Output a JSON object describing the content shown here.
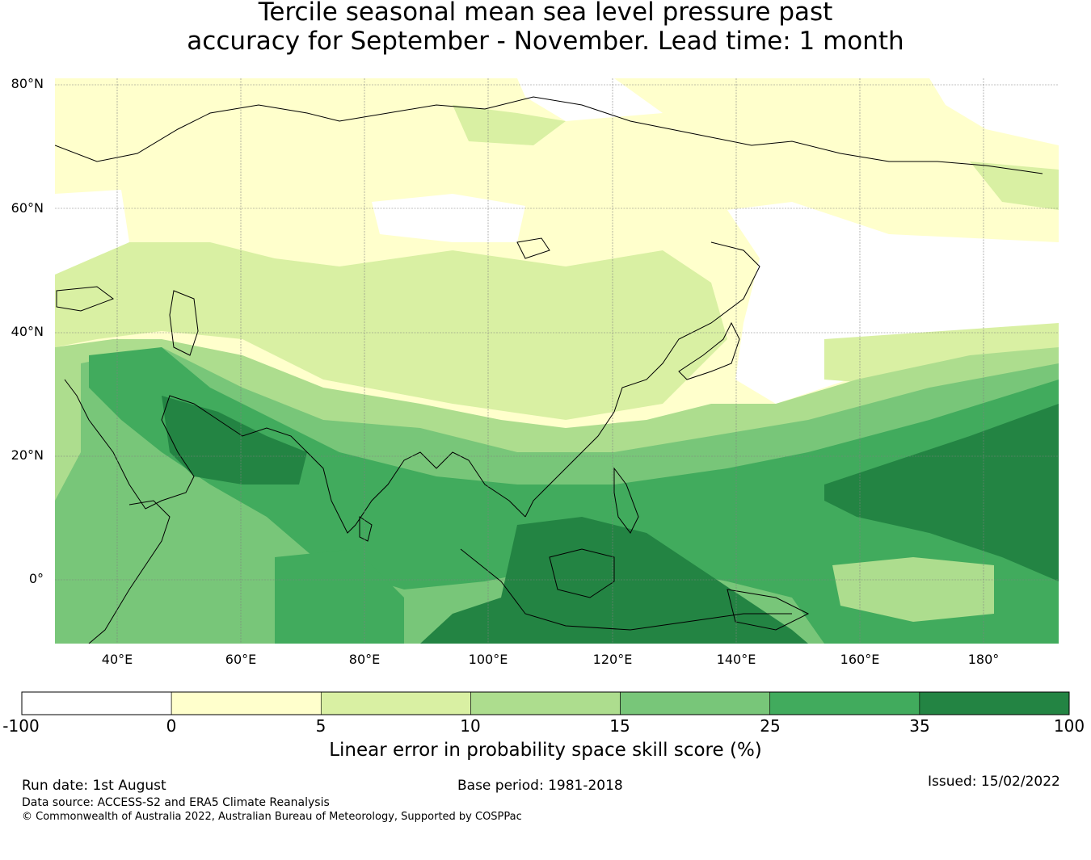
{
  "title": {
    "line1": "Tercile seasonal mean sea level pressure past",
    "line2": "accuracy for September - November. Lead time: 1 month"
  },
  "map": {
    "projection": "equirectangular",
    "lon_range": [
      30,
      192
    ],
    "lat_range": [
      -10,
      81
    ],
    "lat_ticks": [
      {
        "value": 80,
        "label": "80°N"
      },
      {
        "value": 60,
        "label": "60°N"
      },
      {
        "value": 40,
        "label": "40°N"
      },
      {
        "value": 20,
        "label": "20°N"
      },
      {
        "value": 0,
        "label": "0°"
      }
    ],
    "lon_ticks": [
      {
        "value": 40,
        "label": "40°E"
      },
      {
        "value": 60,
        "label": "60°E"
      },
      {
        "value": 80,
        "label": "80°E"
      },
      {
        "value": 100,
        "label": "100°E"
      },
      {
        "value": 120,
        "label": "120°E"
      },
      {
        "value": 140,
        "label": "140°E"
      },
      {
        "value": 160,
        "label": "160°E"
      },
      {
        "value": 180,
        "label": "180°"
      }
    ],
    "gridlines": true,
    "coastline_color": "#000000"
  },
  "colorbar": {
    "boundaries": [
      "-100",
      "0",
      "5",
      "10",
      "15",
      "25",
      "35",
      "100"
    ],
    "colors": [
      "#ffffff",
      "#ffffcc",
      "#d9f0a3",
      "#addd8e",
      "#78c679",
      "#41ab5d",
      "#238443"
    ],
    "label": "Linear error in probability space skill score (%)"
  },
  "footer": {
    "run_date": "Run date: 1st August",
    "base_period": "Base period: 1981-2018",
    "issued": "Issued: 15/02/2022",
    "data_source": "Data source: ACCESS-S2 and ERA5 Climate Reanalysis",
    "copyright": "© Commonwealth of Australia 2022, Australian Bureau of Meteorology, Supported by COSPPac"
  }
}
